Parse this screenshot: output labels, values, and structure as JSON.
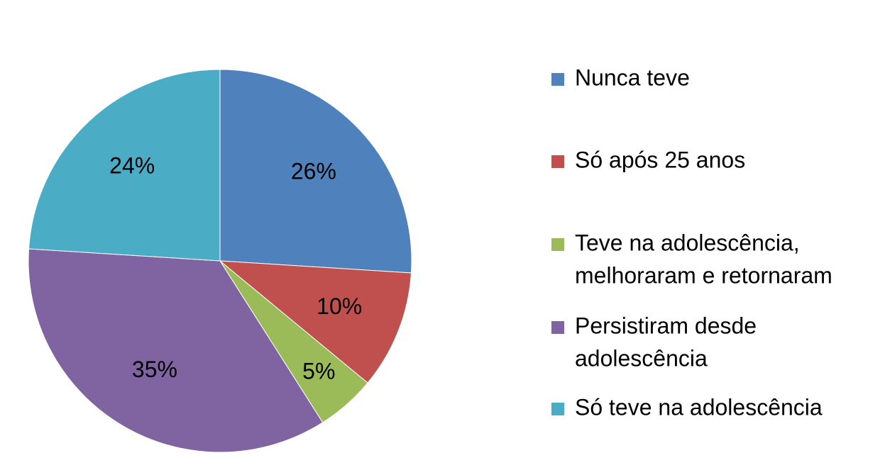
{
  "chart_data": {
    "type": "pie",
    "title": "",
    "legend_position": "right",
    "slices": [
      {
        "label": "Nunca teve",
        "legend_lines": [
          "Nunca teve"
        ],
        "value": 26,
        "value_label": "26%",
        "color": "#4F81BD"
      },
      {
        "label": "Só após 25 anos",
        "legend_lines": [
          "Só após 25 anos"
        ],
        "value": 10,
        "value_label": "10%",
        "color": "#C0504D"
      },
      {
        "label": "Teve na adolescência, melhoraram e retornaram",
        "legend_lines": [
          "Teve na adolescência,",
          "melhoraram e retornaram"
        ],
        "value": 5,
        "value_label": "5%",
        "color": "#9BBB59"
      },
      {
        "label": "Persistiram desde adolescência",
        "legend_lines": [
          "Persistiram desde",
          "adolescência"
        ],
        "value": 35,
        "value_label": "35%",
        "color": "#8064A2"
      },
      {
        "label": "Só teve na adolescência",
        "legend_lines": [
          "Só teve na adolescência"
        ],
        "value": 24,
        "value_label": "24%",
        "color": "#4BACC6"
      }
    ]
  }
}
